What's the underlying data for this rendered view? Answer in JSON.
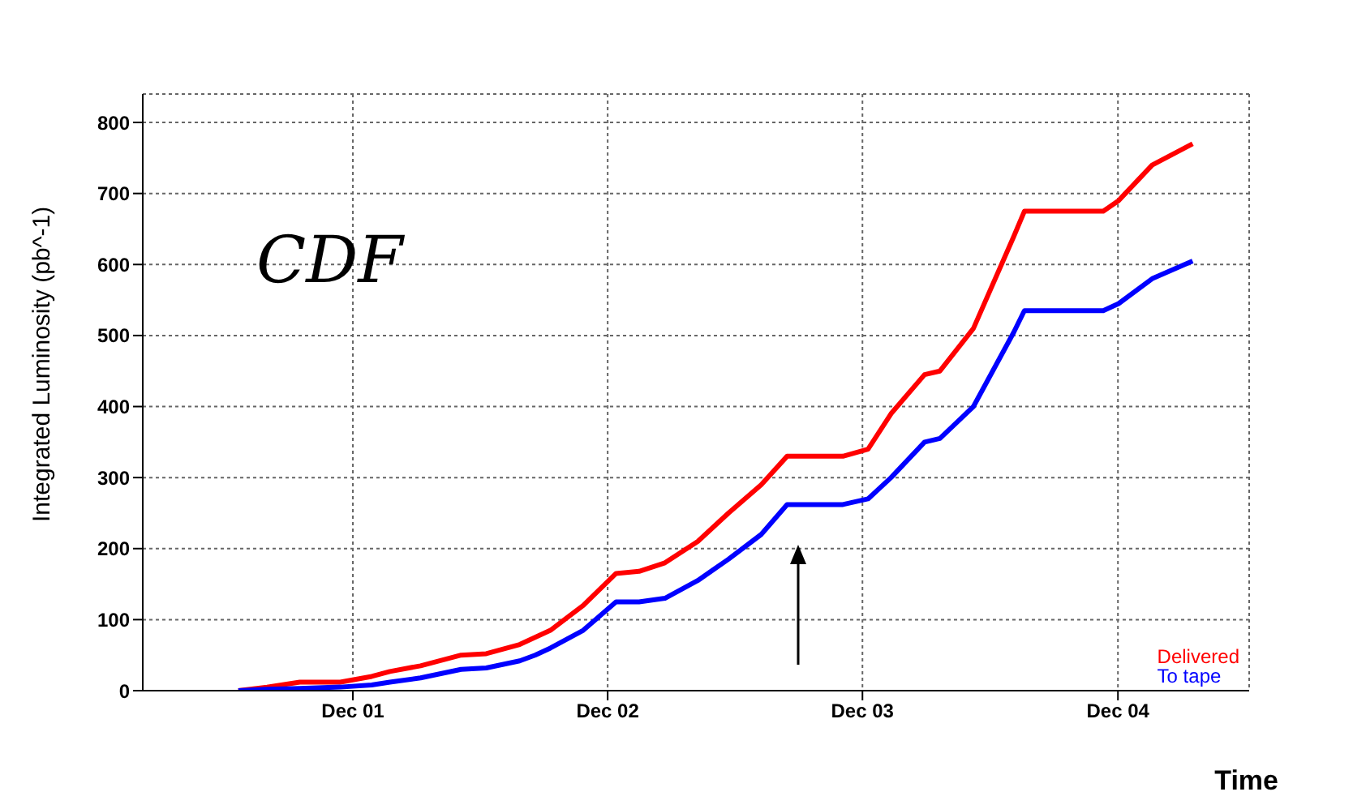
{
  "chart_data": {
    "type": "line",
    "ylabel": "Integrated Luminosity (pb^-1)",
    "xlabel": "Time",
    "annotations": [
      "CDF"
    ],
    "x": [
      "2001-06-20",
      "2001-07-31",
      "2001-09-16",
      "2001-11-13",
      "2001-12-28",
      "2002-01-23",
      "2002-03-08",
      "2002-05-05",
      "2002-06-10",
      "2002-07-28",
      "2002-08-19",
      "2002-09-10",
      "2002-10-27",
      "2002-12-13",
      "2003-01-15",
      "2003-02-21",
      "2003-04-09",
      "2003-05-01",
      "2003-05-23",
      "2003-07-09",
      "2003-08-15",
      "2003-11-03",
      "2003-12-09",
      "2004-01-11",
      "2004-02-28",
      "2004-03-21",
      "2004-05-08",
      "2004-07-05",
      "2004-07-20",
      "2004-11-10",
      "2004-12-02",
      "2005-01-19",
      "2005-03-18"
    ],
    "series": [
      {
        "name": "Delivered",
        "color": "#ff0000",
        "values": [
          0,
          5,
          12,
          12,
          20,
          27,
          35,
          50,
          52,
          65,
          75,
          85,
          120,
          165,
          168,
          180,
          210,
          230,
          250,
          290,
          330,
          330,
          340,
          390,
          445,
          450,
          510,
          640,
          675,
          675,
          690,
          740,
          770
        ]
      },
      {
        "name": "To tape",
        "color": "#0000ff",
        "values": [
          0,
          2,
          3,
          5,
          8,
          12,
          18,
          30,
          32,
          42,
          50,
          60,
          85,
          125,
          125,
          130,
          155,
          170,
          185,
          220,
          262,
          262,
          270,
          300,
          350,
          355,
          400,
          505,
          535,
          535,
          545,
          580,
          605
        ]
      }
    ],
    "xlim": [
      "2001-02-03",
      "2005-06-07"
    ],
    "xticks": [
      {
        "value": "2001-12-01",
        "label": "Dec 01"
      },
      {
        "value": "2002-12-01",
        "label": "Dec 02"
      },
      {
        "value": "2003-12-01",
        "label": "Dec 03"
      },
      {
        "value": "2004-12-01",
        "label": "Dec 04"
      }
    ],
    "ylim": [
      0,
      840
    ],
    "yticks": [
      0,
      100,
      200,
      300,
      400,
      500,
      600,
      700,
      800
    ],
    "grid": true,
    "legend": "bottom right",
    "line_style": "solid",
    "marker": "none"
  }
}
